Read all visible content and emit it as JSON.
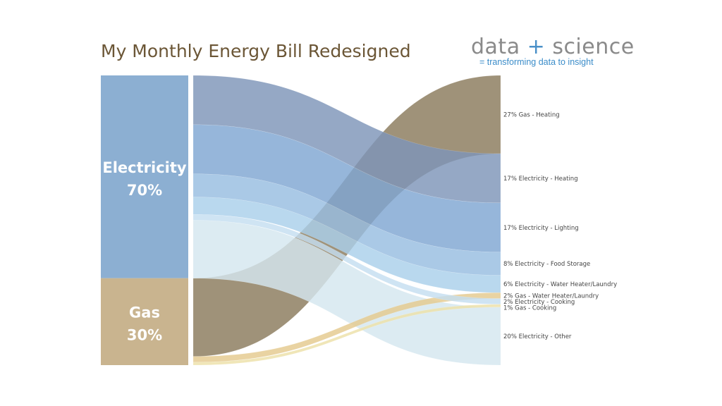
{
  "title": "My Monthly Energy Bill Redesigned",
  "brand": {
    "name_left": "data",
    "name_plus": "+",
    "name_right": "science",
    "tagline": "= transforming data to insight"
  },
  "chart_data": {
    "type": "sankey",
    "title": "My Monthly Energy Bill Redesigned",
    "sources": [
      {
        "name": "Electricity",
        "label": "70%",
        "value": 70,
        "color": "#8cafd2"
      },
      {
        "name": "Gas",
        "label": "30%",
        "value": 30,
        "color": "#c9b48f"
      }
    ],
    "targets": [
      {
        "label": "27% Gas - Heating",
        "source": "Gas",
        "value": 27,
        "color": "#8a7a5c"
      },
      {
        "label": "17% Electricity - Heating",
        "source": "Electricity",
        "value": 17,
        "color": "#7e95b8"
      },
      {
        "label": "17% Electricity - Lighting",
        "source": "Electricity",
        "value": 17,
        "color": "#7fa6d2"
      },
      {
        "label": "8% Electricity - Food Storage",
        "source": "Electricity",
        "value": 8,
        "color": "#97bde0"
      },
      {
        "label": "6% Electricity - Water Heater/Laundry",
        "source": "Electricity",
        "value": 6,
        "color": "#a9d0ea"
      },
      {
        "label": "2% Gas - Water Heater/Laundry",
        "source": "Gas",
        "value": 2,
        "color": "#e4c98e"
      },
      {
        "label": "2% Electricity - Cooking",
        "source": "Electricity",
        "value": 2,
        "color": "#c4def0"
      },
      {
        "label": "1% Gas - Cooking",
        "source": "Gas",
        "value": 1,
        "color": "#ede0a8"
      },
      {
        "label": "20% Electricity - Other",
        "source": "Electricity",
        "value": 20,
        "color": "#d4e6ef"
      }
    ]
  }
}
